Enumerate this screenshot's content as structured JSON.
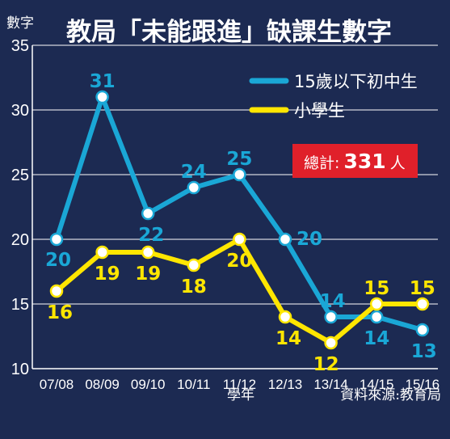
{
  "chart_data": {
    "type": "line",
    "title": "教局「未能跟進」缺課生數字",
    "ylabel": "數字",
    "xlabel": "學年",
    "source": "資料來源:教育局",
    "ylim": [
      10,
      35
    ],
    "yticks": [
      10,
      15,
      20,
      25,
      30,
      35
    ],
    "grid": true,
    "legend_position": "top-right",
    "categories": [
      "07/08",
      "08/09",
      "09/10",
      "10/11",
      "11/12",
      "12/13",
      "13/14",
      "14/15",
      "15/16"
    ],
    "series": [
      {
        "name": "15歲以下初中生",
        "color": "#1aa7d6",
        "values": [
          20,
          31,
          22,
          24,
          25,
          20,
          14,
          14,
          13
        ]
      },
      {
        "name": "小學生",
        "color": "#ffe600",
        "values": [
          16,
          19,
          19,
          18,
          20,
          14,
          12,
          15,
          15
        ]
      }
    ],
    "total_box": {
      "label": "總計:",
      "value": "331",
      "unit": "人",
      "color": "#e0202a"
    }
  }
}
